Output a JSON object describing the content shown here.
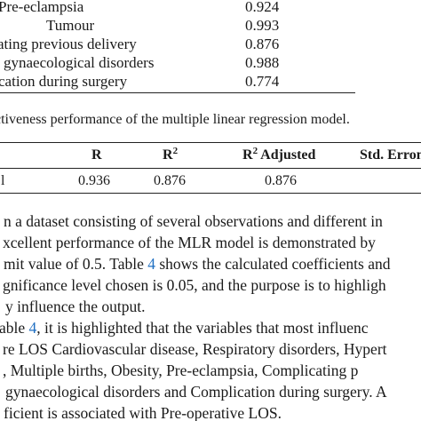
{
  "table3": {
    "rows": [
      {
        "label": "Pre-eclampsia",
        "value": "0.924"
      },
      {
        "label": "Tumour",
        "value": "0.993"
      },
      {
        "label": "ating previous delivery",
        "value": "0.876"
      },
      {
        "label": "l gynaecological disorders",
        "value": "0.988"
      },
      {
        "label": "cation during surgery",
        "value": "0.774"
      }
    ]
  },
  "table4": {
    "caption": "ctiveness performance of the multiple linear regression model.",
    "headers": {
      "r": "R",
      "r2_base": "R",
      "r2_sup": "2",
      "r2adj_base": "R",
      "r2adj_sup": "2",
      "r2adj_rest": " Adjusted",
      "std_err": "Std. Erron"
    },
    "row": {
      "label": "l",
      "r": "0.936",
      "r2": "0.876",
      "r2adj": "0.876"
    }
  },
  "paragraph": {
    "line1": "n a dataset consisting of several observations and different in",
    "line2": "xcellent performance of the MLR model is demonstrated by",
    "line3_a": "mit value of 0.5. Table ",
    "line3_ref": "4",
    "line3_b": " shows the calculated coefficients and",
    "line4": "gnificance level chosen is 0.05, and the purpose is to highligh",
    "line5": "y influence the output.",
    "line6_a": "able ",
    "line6_ref": "4",
    "line6_b": ", it is highlighted that the variables that most influenc",
    "line7": "re LOS Cardiovascular disease, Respiratory disorders, Hypert",
    "line8": ", Multiple births, Obesity, Pre-eclampsia, Complicating p",
    "line9": "gynaecological disorders and Complication during surgery. A",
    "line10": "ficient is associated with Pre-operative LOS."
  }
}
